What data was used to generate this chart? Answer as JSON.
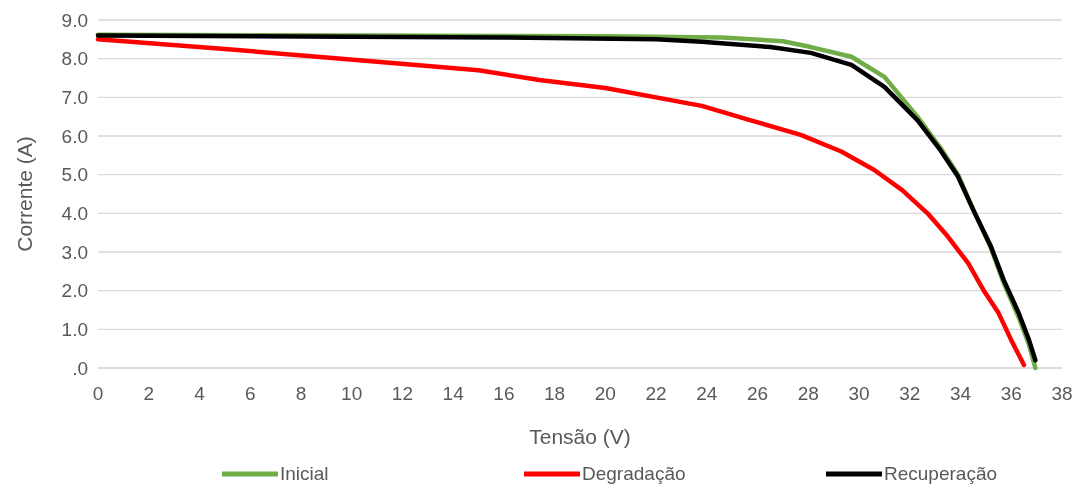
{
  "chart_data": {
    "type": "line",
    "xlabel": "Tensão (V)",
    "ylabel": "Corrente (A)",
    "xlim": [
      0,
      38
    ],
    "xticks": [
      0,
      2,
      4,
      6,
      8,
      10,
      12,
      14,
      16,
      18,
      20,
      22,
      24,
      26,
      28,
      30,
      32,
      34,
      36,
      38
    ],
    "ylim": [
      0,
      9
    ],
    "yticks": [
      {
        "value": 0,
        "label": ".0"
      },
      {
        "value": 1,
        "label": "1.0"
      },
      {
        "value": 2,
        "label": "2.0"
      },
      {
        "value": 3,
        "label": "3.0"
      },
      {
        "value": 4,
        "label": "4.0"
      },
      {
        "value": 5,
        "label": "5.0"
      },
      {
        "value": 6,
        "label": "6.0"
      },
      {
        "value": 7,
        "label": "7.0"
      },
      {
        "value": 8,
        "label": "8.0"
      },
      {
        "value": 9,
        "label": "9.0"
      }
    ],
    "grid": "y",
    "legend": "bottom",
    "marker": "none",
    "line_style": "solid",
    "series": [
      {
        "name": "Inicial",
        "color": "#70ad47",
        "x": [
          0,
          10,
          20,
          24.6,
          27,
          28.1,
          29.7,
          31,
          32.3,
          33.2,
          33.9,
          34.5,
          35.2,
          35.7,
          36.3,
          36.7,
          36.95
        ],
        "values": [
          8.62,
          8.6,
          8.58,
          8.55,
          8.45,
          8.3,
          8.05,
          7.53,
          6.5,
          5.7,
          5.0,
          4.1,
          3.1,
          2.2,
          1.3,
          0.6,
          0
        ]
      },
      {
        "name": "Degradação",
        "color": "#ff0000",
        "x": [
          0,
          5,
          10.3,
          15,
          17.4,
          20,
          23.8,
          25.7,
          27.7,
          29.3,
          30.6,
          31.7,
          32.7,
          33.5,
          34.3,
          34.9,
          35.5,
          36.0,
          36.5
        ],
        "values": [
          8.5,
          8.25,
          7.96,
          7.7,
          7.45,
          7.24,
          6.78,
          6.41,
          6.03,
          5.6,
          5.12,
          4.6,
          4.0,
          3.4,
          2.71,
          2.02,
          1.42,
          0.72,
          0.08
        ]
      },
      {
        "name": "Recuperação",
        "color": "#000000",
        "x": [
          0,
          10,
          16,
          22,
          23.8,
          26.5,
          28.1,
          29.7,
          31,
          32.3,
          33.2,
          33.9,
          34.5,
          35.2,
          35.7,
          36.3,
          36.7,
          36.95
        ],
        "values": [
          8.6,
          8.57,
          8.55,
          8.5,
          8.44,
          8.3,
          8.15,
          7.84,
          7.27,
          6.41,
          5.64,
          4.95,
          4.09,
          3.14,
          2.28,
          1.41,
          0.72,
          0.2
        ]
      }
    ]
  }
}
